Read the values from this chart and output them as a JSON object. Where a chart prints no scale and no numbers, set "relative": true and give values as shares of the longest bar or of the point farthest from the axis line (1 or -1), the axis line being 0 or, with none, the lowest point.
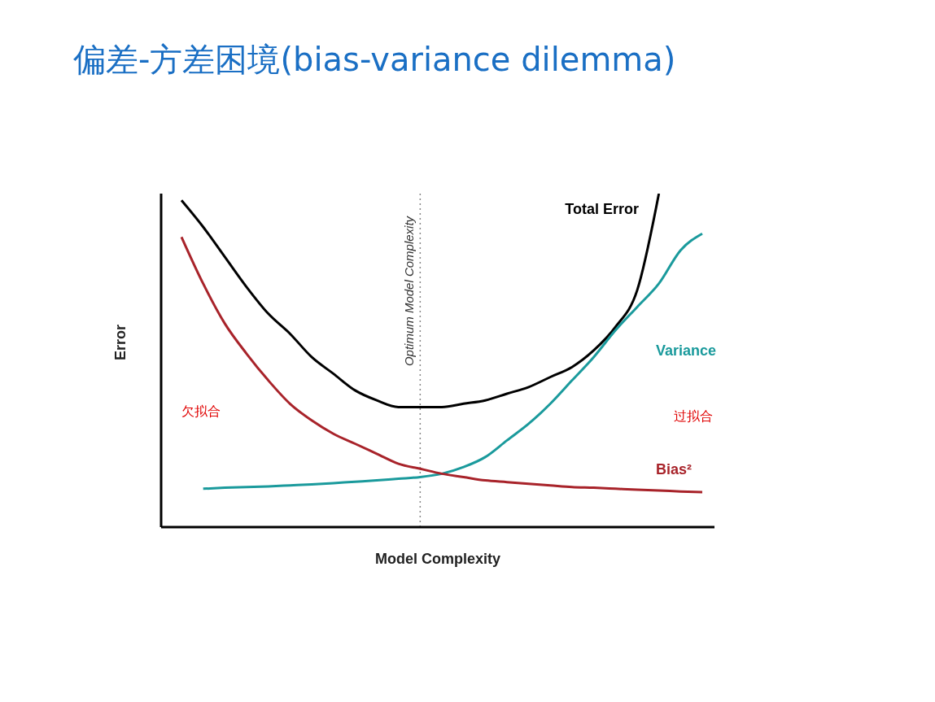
{
  "chart_data": {
    "type": "line",
    "title": "偏差-方差困境(bias-variance dilemma)",
    "xlabel": "Model Complexity",
    "ylabel": "Error",
    "relative": true,
    "grid": false,
    "legend": false,
    "marker": "none",
    "line_style": "solid",
    "categories": [
      null,
      null,
      null,
      null,
      null,
      null,
      null,
      null,
      null,
      null,
      null,
      null,
      null,
      null,
      null,
      null,
      null,
      null,
      null,
      null,
      null,
      null,
      null,
      null,
      null
    ],
    "series": [
      {
        "name": "Total Error",
        "color": "#000000",
        "values": [
          0.98,
          0.9,
          0.81,
          0.72,
          0.64,
          0.58,
          0.51,
          0.46,
          0.41,
          0.38,
          0.36,
          0.36,
          0.36,
          0.37,
          0.38,
          0.4,
          0.42,
          0.45,
          0.48,
          0.53,
          0.6,
          0.71,
          1.0,
          null,
          null
        ]
      },
      {
        "name": "Variance",
        "color": "#1a9a9c",
        "values": [
          null,
          0.115,
          0.118,
          0.12,
          0.122,
          0.125,
          0.128,
          0.132,
          0.136,
          0.14,
          0.145,
          0.15,
          0.16,
          0.18,
          0.21,
          0.26,
          0.31,
          0.37,
          0.44,
          0.51,
          0.59,
          0.66,
          0.73,
          0.83,
          0.88
        ]
      },
      {
        "name": "Bias²",
        "color": "#a8232a",
        "values": [
          0.87,
          0.73,
          0.61,
          0.52,
          0.44,
          0.37,
          0.32,
          0.28,
          0.25,
          0.22,
          0.19,
          0.175,
          0.16,
          0.15,
          0.14,
          0.135,
          0.13,
          0.125,
          0.12,
          0.118,
          0.115,
          0.112,
          0.11,
          0.107,
          0.105
        ]
      }
    ],
    "annotations": [
      "Optimum Model Complexity",
      "欠拟合",
      "过拟合"
    ]
  }
}
